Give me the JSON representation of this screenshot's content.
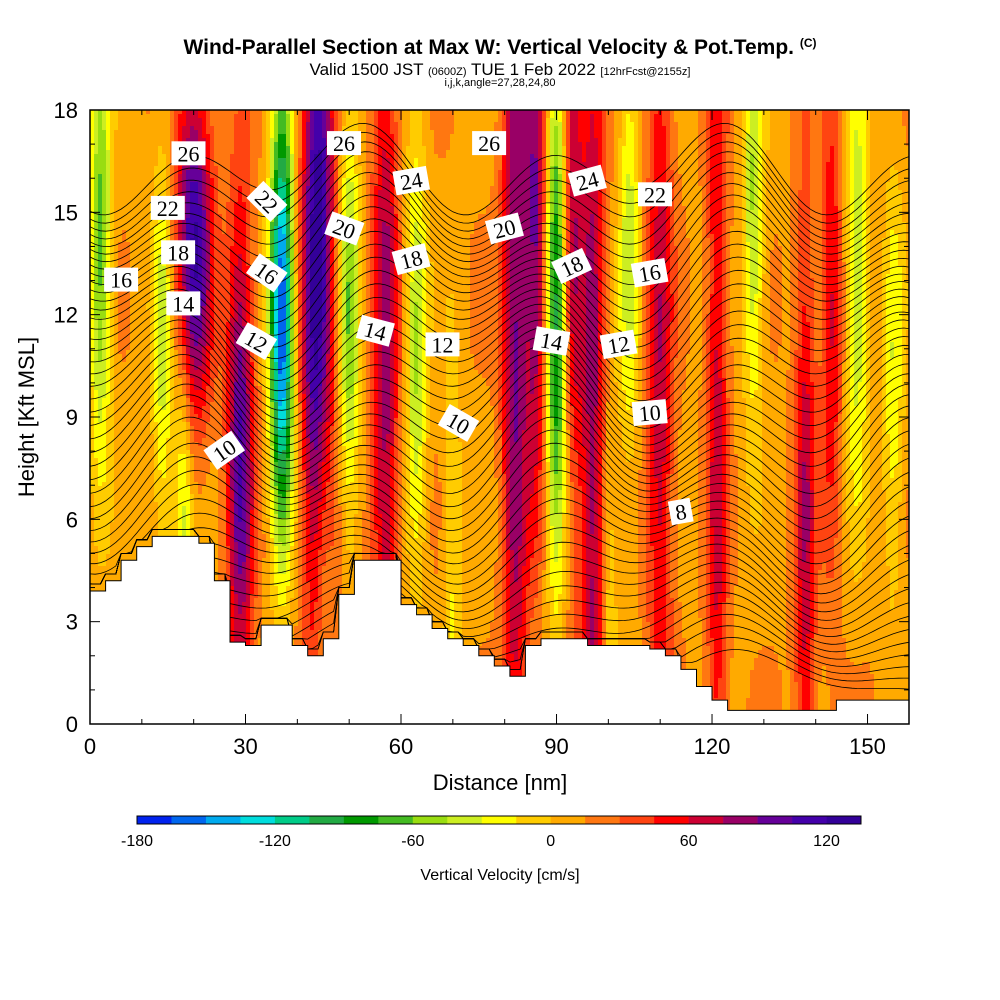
{
  "title": {
    "main": "Wind-Parallel Section at Max W: Vertical Velocity & Pot.Temp.",
    "copyright": "(C)",
    "valid_a": "Valid 1500 JST",
    "valid_b": "(0600Z)",
    "valid_c": "TUE 1 Feb 2022",
    "valid_d": "[12hrFcst@2155z]",
    "indices": "i,j,k,angle=27,28,24,80"
  },
  "chart_data": {
    "type": "heatmap",
    "xlabel": "Distance [nm]",
    "ylabel": "Height [Kft MSL]",
    "xlim": [
      0,
      158
    ],
    "ylim": [
      0,
      18
    ],
    "x_ticks": [
      "0",
      "30",
      "60",
      "90",
      "120",
      "150"
    ],
    "y_ticks": [
      "0",
      "3",
      "6",
      "9",
      "12",
      "15",
      "18"
    ],
    "colorbar": {
      "label": "Vertical Velocity [cm/s]",
      "ticks": [
        "-180",
        "-120",
        "-60",
        "0",
        "60",
        "120"
      ],
      "range": [
        -180,
        135
      ],
      "step": 15,
      "colors": [
        "#0022ee",
        "#0066ee",
        "#00aaee",
        "#00dddd",
        "#00cc88",
        "#22aa44",
        "#009900",
        "#44bb22",
        "#99dd11",
        "#ccee22",
        "#ffff00",
        "#ffcc00",
        "#ffaa00",
        "#ff7711",
        "#ff4411",
        "#ff0000",
        "#cc0033",
        "#990066",
        "#660099",
        "#4400aa",
        "#330099"
      ]
    },
    "terrain_kft": [
      [
        0,
        3.9
      ],
      [
        3,
        4.2
      ],
      [
        6,
        4.8
      ],
      [
        9,
        5.2
      ],
      [
        12,
        5.5
      ],
      [
        15,
        5.5
      ],
      [
        18,
        5.5
      ],
      [
        21,
        5.3
      ],
      [
        24,
        4.2
      ],
      [
        27,
        2.4
      ],
      [
        30,
        2.3
      ],
      [
        33,
        2.9
      ],
      [
        36,
        2.9
      ],
      [
        39,
        2.3
      ],
      [
        42,
        2.0
      ],
      [
        45,
        2.5
      ],
      [
        48,
        3.8
      ],
      [
        51,
        4.8
      ],
      [
        54,
        4.8
      ],
      [
        57,
        4.8
      ],
      [
        60,
        3.5
      ],
      [
        63,
        3.2
      ],
      [
        66,
        2.8
      ],
      [
        69,
        2.5
      ],
      [
        72,
        2.3
      ],
      [
        75,
        2.0
      ],
      [
        78,
        1.7
      ],
      [
        81,
        1.4
      ],
      [
        84,
        2.3
      ],
      [
        87,
        2.5
      ],
      [
        90,
        2.5
      ],
      [
        93,
        2.5
      ],
      [
        96,
        2.3
      ],
      [
        99,
        2.3
      ],
      [
        102,
        2.3
      ],
      [
        105,
        2.3
      ],
      [
        108,
        2.2
      ],
      [
        111,
        2.0
      ],
      [
        114,
        1.6
      ],
      [
        117,
        1.1
      ],
      [
        120,
        0.7
      ],
      [
        123,
        0.4
      ],
      [
        126,
        0.4
      ],
      [
        129,
        0.4
      ],
      [
        132,
        0.4
      ],
      [
        135,
        0.4
      ],
      [
        138,
        0.4
      ],
      [
        141,
        0.4
      ],
      [
        144,
        0.7
      ],
      [
        147,
        0.7
      ],
      [
        150,
        0.7
      ],
      [
        153,
        0.7
      ],
      [
        156,
        0.7
      ],
      [
        158,
        0.7
      ]
    ],
    "w_updrafts": [
      [
        20,
        14,
        3.5,
        110,
        2
      ],
      [
        29,
        8,
        2.5,
        95,
        3
      ],
      [
        44,
        13,
        3,
        130,
        4
      ],
      [
        57,
        10,
        2.5,
        70,
        5
      ],
      [
        82,
        12,
        2.5,
        80,
        6
      ],
      [
        97,
        8,
        2.5,
        70,
        7
      ],
      [
        110,
        10,
        2.5,
        60,
        5
      ],
      [
        121,
        9,
        2,
        55,
        6
      ],
      [
        138,
        6,
        2,
        60,
        4
      ],
      [
        143,
        12,
        2,
        50,
        3
      ],
      [
        86,
        14,
        2,
        80,
        3
      ],
      [
        93,
        16,
        2,
        60,
        4
      ]
    ],
    "w_downdrafts": [
      [
        37,
        12,
        2.2,
        -180,
        2.5
      ],
      [
        2,
        14,
        2,
        -80,
        2.5
      ],
      [
        14,
        11,
        2,
        -50,
        2.5
      ],
      [
        50,
        12,
        2,
        -70,
        2.5
      ],
      [
        63,
        11,
        2,
        -60,
        2.5
      ],
      [
        90,
        12,
        2,
        -110,
        3
      ],
      [
        104,
        14,
        2,
        -50,
        2.5
      ],
      [
        128,
        15,
        2,
        -60,
        2.5
      ],
      [
        148,
        13,
        2,
        -60,
        2.5
      ],
      [
        155,
        10,
        2,
        -40,
        2.5
      ],
      [
        18,
        6,
        1.8,
        -50,
        2.5
      ],
      [
        45,
        6,
        1.8,
        -40,
        2.5
      ],
      [
        70,
        5,
        1.8,
        -30,
        2.5
      ],
      [
        100,
        4,
        1.8,
        -30,
        2.5
      ]
    ],
    "theta_labels": [
      {
        "x": 19,
        "y": 16.7,
        "text": "26",
        "r": 0
      },
      {
        "x": 49,
        "y": 17.0,
        "text": "26",
        "r": 0
      },
      {
        "x": 77,
        "y": 17.0,
        "text": "26",
        "r": 0
      },
      {
        "x": 15,
        "y": 15.1,
        "text": "22",
        "r": 0
      },
      {
        "x": 34,
        "y": 15.3,
        "text": "22",
        "r": 45
      },
      {
        "x": 62,
        "y": 15.9,
        "text": "24",
        "r": -10
      },
      {
        "x": 96,
        "y": 15.9,
        "text": "24",
        "r": -15
      },
      {
        "x": 109,
        "y": 15.5,
        "text": "22",
        "r": 0
      },
      {
        "x": 17,
        "y": 13.8,
        "text": "18",
        "r": 0
      },
      {
        "x": 49,
        "y": 14.5,
        "text": "20",
        "r": 20
      },
      {
        "x": 80,
        "y": 14.5,
        "text": "20",
        "r": -15
      },
      {
        "x": 6,
        "y": 13.0,
        "text": "16",
        "r": 0
      },
      {
        "x": 34,
        "y": 13.2,
        "text": "16",
        "r": 35
      },
      {
        "x": 62,
        "y": 13.6,
        "text": "18",
        "r": -15
      },
      {
        "x": 93,
        "y": 13.4,
        "text": "18",
        "r": -25
      },
      {
        "x": 108,
        "y": 13.2,
        "text": "16",
        "r": -10
      },
      {
        "x": 18,
        "y": 12.3,
        "text": "14",
        "r": 0
      },
      {
        "x": 32,
        "y": 11.2,
        "text": "12",
        "r": 30
      },
      {
        "x": 55,
        "y": 11.5,
        "text": "14",
        "r": 15
      },
      {
        "x": 68,
        "y": 11.1,
        "text": "12",
        "r": 0
      },
      {
        "x": 89,
        "y": 11.2,
        "text": "14",
        "r": 10
      },
      {
        "x": 102,
        "y": 11.1,
        "text": "12",
        "r": -10
      },
      {
        "x": 71,
        "y": 8.8,
        "text": "10",
        "r": 30
      },
      {
        "x": 108,
        "y": 9.1,
        "text": "10",
        "r": -5
      },
      {
        "x": 26,
        "y": 8.0,
        "text": "10",
        "r": -35
      },
      {
        "x": 114,
        "y": 6.2,
        "text": "8",
        "r": -10
      }
    ]
  }
}
